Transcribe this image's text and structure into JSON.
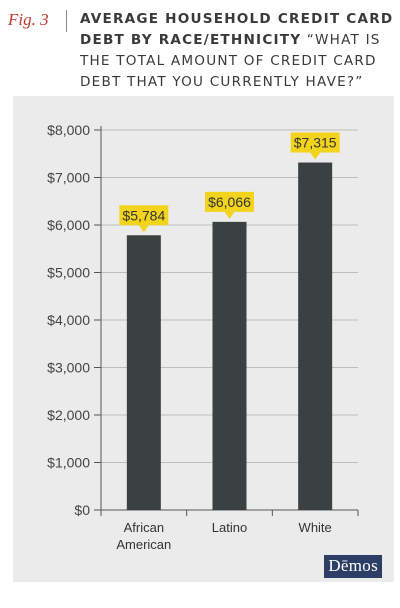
{
  "figure": {
    "label": "Fig. 3",
    "title": "Average Household Credit Card Debt by Race/Ethnicity",
    "subtitle": "“What is the total amount of credit card debt that you currently have?”"
  },
  "brand": {
    "name": "Dēmos"
  },
  "colors": {
    "bar": "#3a4140",
    "callout": "#f3d41c",
    "panel": "#ebebeb",
    "axis": "#555555"
  },
  "chart_data": {
    "type": "bar",
    "categories": [
      "African American",
      "Latino",
      "White"
    ],
    "values": [
      5784,
      6066,
      7315
    ],
    "data_labels": [
      "$5,784",
      "$6,066",
      "$7,315"
    ],
    "yticks": [
      "$0",
      "$1,000",
      "$2,000",
      "$3,000",
      "$4,000",
      "$5,000",
      "$6,000",
      "$7,000",
      "$8,000"
    ],
    "ylim": [
      0,
      8000
    ],
    "grid": true,
    "xlabel": "",
    "ylabel": ""
  }
}
